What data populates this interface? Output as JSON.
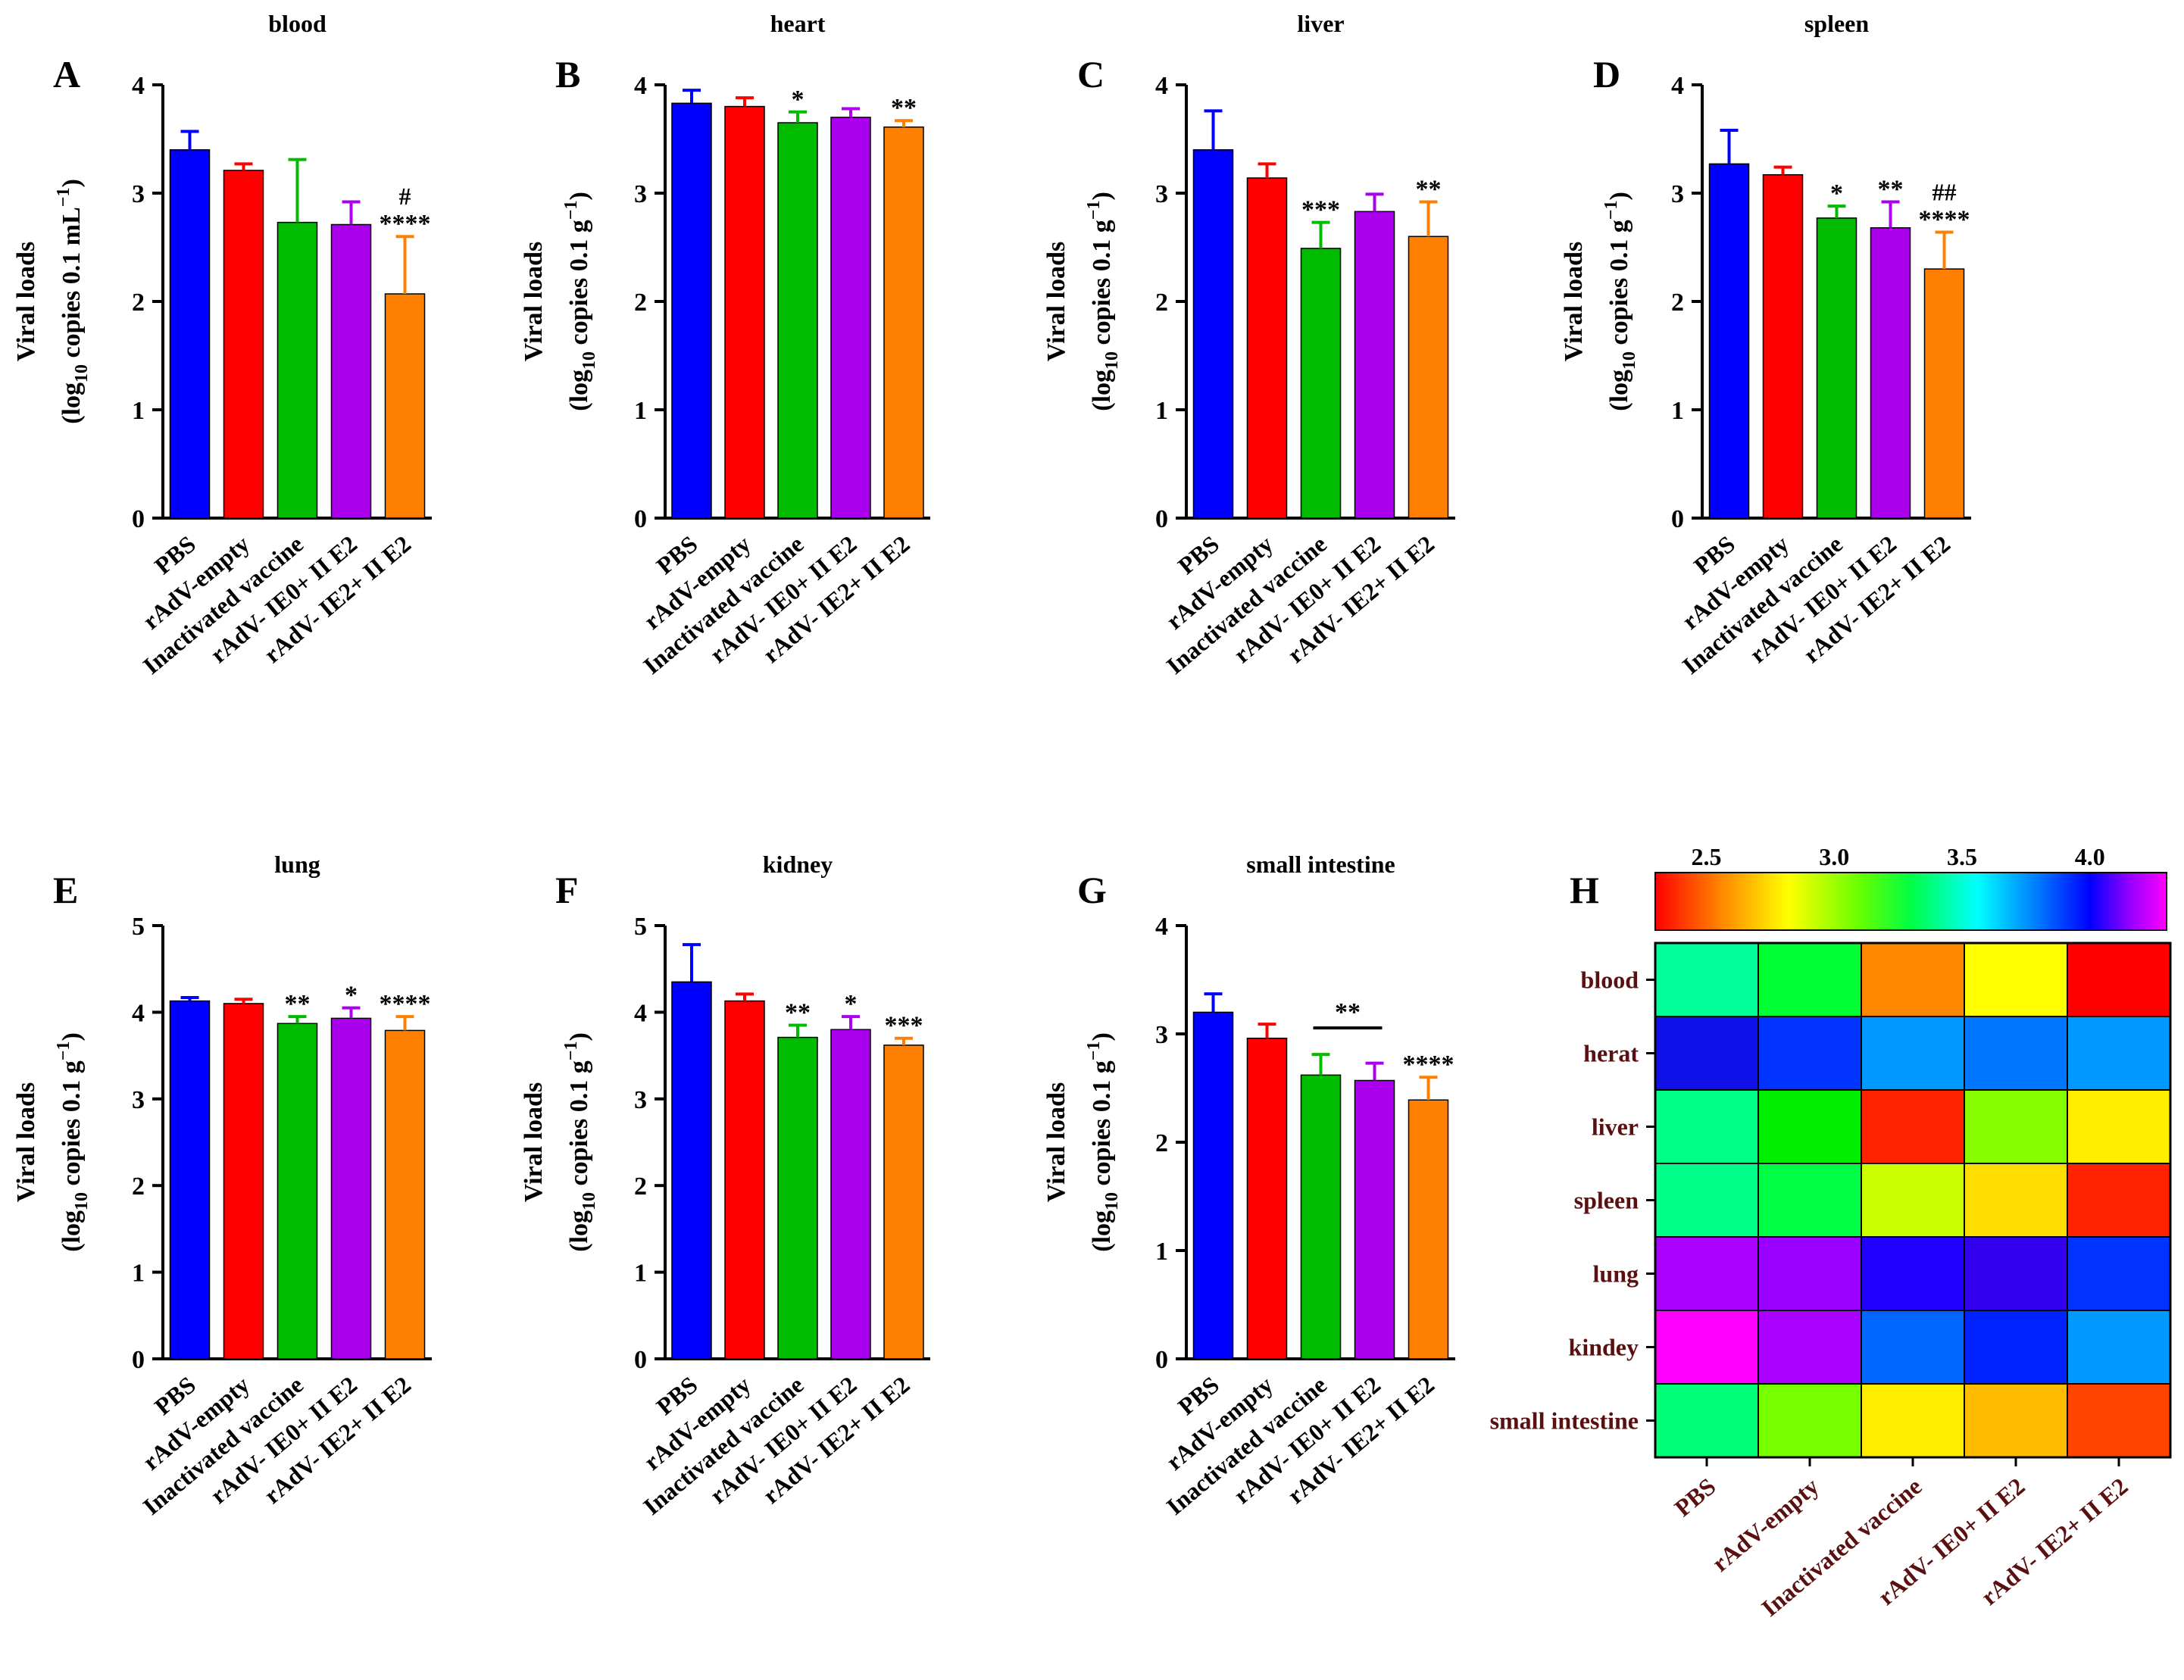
{
  "figure": {
    "groups": [
      "PBS",
      "rAdV-empty",
      "Inactivated vaccine",
      "rAdV- IE0+ II E2",
      "rAdV- IE2+ II E2"
    ],
    "bar_colors": [
      "#0000ff",
      "#ff0000",
      "#00bb00",
      "#aa00ee",
      "#ff8000"
    ],
    "y_label_line1": "Viral loads"
  },
  "chart_data": [
    {
      "panel": "A",
      "type": "bar",
      "title": "blood",
      "ylabel": "(log10 copies 0.1 mL−1)",
      "ylabel_parts": {
        "pre": "(log",
        "sub": "10",
        "mid": " copies 0.1 mL",
        "sup": "−1",
        "post": ")"
      },
      "ylim": [
        0,
        4
      ],
      "yticks": [
        "0",
        "1",
        "2",
        "3",
        "4"
      ],
      "categories": [
        "PBS",
        "rAdV-empty",
        "Inactivated vaccine",
        "rAdV- IE0+ II E2",
        "rAdV- IE2+ II E2"
      ],
      "values": [
        3.4,
        3.21,
        2.73,
        2.71,
        2.07
      ],
      "errors": [
        0.17,
        0.06,
        0.58,
        0.21,
        0.53
      ],
      "annotations": [
        "",
        "",
        "",
        "",
        "****"
      ],
      "annotations2": [
        "",
        "",
        "",
        "",
        "#"
      ]
    },
    {
      "panel": "B",
      "type": "bar",
      "title": "heart",
      "ylabel": "(log10 copies 0.1 g−1)",
      "ylabel_parts": {
        "pre": "(log",
        "sub": "10",
        "mid": " copies 0.1 g",
        "sup": "−1",
        "post": ")"
      },
      "ylim": [
        0,
        4
      ],
      "yticks": [
        "0",
        "1",
        "2",
        "3",
        "4"
      ],
      "categories": [
        "PBS",
        "rAdV-empty",
        "Inactivated vaccine",
        "rAdV- IE0+ II E2",
        "rAdV- IE2+ II E2"
      ],
      "values": [
        3.83,
        3.8,
        3.65,
        3.7,
        3.61
      ],
      "errors": [
        0.12,
        0.08,
        0.1,
        0.08,
        0.06
      ],
      "annotations": [
        "",
        "",
        "*",
        "",
        "**"
      ],
      "annotations2": [
        "",
        "",
        "",
        "",
        ""
      ]
    },
    {
      "panel": "C",
      "type": "bar",
      "title": "liver",
      "ylabel": "(log10 copies 0.1 g−1)",
      "ylabel_parts": {
        "pre": "(log",
        "sub": "10",
        "mid": " copies 0.1 g",
        "sup": "−1",
        "post": ")"
      },
      "ylim": [
        0,
        4
      ],
      "yticks": [
        "0",
        "1",
        "2",
        "3",
        "4"
      ],
      "categories": [
        "PBS",
        "rAdV-empty",
        "Inactivated vaccine",
        "rAdV- IE0+ II E2",
        "rAdV- IE2+ II E2"
      ],
      "values": [
        3.4,
        3.14,
        2.49,
        2.83,
        2.6
      ],
      "errors": [
        0.36,
        0.13,
        0.24,
        0.16,
        0.32
      ],
      "annotations": [
        "",
        "",
        "***",
        "",
        "**"
      ],
      "annotations2": [
        "",
        "",
        "",
        "",
        ""
      ]
    },
    {
      "panel": "D",
      "type": "bar",
      "title": "spleen",
      "ylabel": "(log10 copies 0.1 g−1)",
      "ylabel_parts": {
        "pre": "(log",
        "sub": "10",
        "mid": " copies 0.1 g",
        "sup": "−1",
        "post": ")"
      },
      "ylim": [
        0,
        4
      ],
      "yticks": [
        "0",
        "1",
        "2",
        "3",
        "4"
      ],
      "categories": [
        "PBS",
        "rAdV-empty",
        "Inactivated vaccine",
        "rAdV- IE0+ II E2",
        "rAdV- IE2+ II E2"
      ],
      "values": [
        3.27,
        3.17,
        2.77,
        2.68,
        2.3
      ],
      "errors": [
        0.31,
        0.07,
        0.11,
        0.24,
        0.34
      ],
      "annotations": [
        "",
        "",
        "*",
        "**",
        "****"
      ],
      "annotations2": [
        "",
        "",
        "",
        "",
        "##"
      ]
    },
    {
      "panel": "E",
      "type": "bar",
      "title": "lung",
      "ylabel": "(log10 copies 0.1 g−1)",
      "ylabel_parts": {
        "pre": "(log",
        "sub": "10",
        "mid": " copies 0.1 g",
        "sup": "−1",
        "post": ")"
      },
      "ylim": [
        0,
        5
      ],
      "yticks": [
        "0",
        "1",
        "2",
        "3",
        "4",
        "5"
      ],
      "categories": [
        "PBS",
        "rAdV-empty",
        "Inactivated vaccine",
        "rAdV- IE0+ II E2",
        "rAdV- IE2+ II E2"
      ],
      "values": [
        4.13,
        4.1,
        3.87,
        3.93,
        3.79
      ],
      "errors": [
        0.04,
        0.05,
        0.08,
        0.12,
        0.16
      ],
      "annotations": [
        "",
        "",
        "**",
        "*",
        "****"
      ],
      "annotations2": [
        "",
        "",
        "",
        "",
        ""
      ]
    },
    {
      "panel": "F",
      "type": "bar",
      "title": "kidney",
      "ylabel": "(log10 copies 0.1 g−1)",
      "ylabel_parts": {
        "pre": "(log",
        "sub": "10",
        "mid": " copies 0.1 g",
        "sup": "−1",
        "post": ")"
      },
      "ylim": [
        0,
        5
      ],
      "yticks": [
        "0",
        "1",
        "2",
        "3",
        "4",
        "5"
      ],
      "categories": [
        "PBS",
        "rAdV-empty",
        "Inactivated vaccine",
        "rAdV- IE0+ II E2",
        "rAdV- IE2+ II E2"
      ],
      "values": [
        4.35,
        4.13,
        3.71,
        3.8,
        3.62
      ],
      "errors": [
        0.43,
        0.08,
        0.14,
        0.15,
        0.08
      ],
      "annotations": [
        "",
        "",
        "**",
        "*",
        "***"
      ],
      "annotations2": [
        "",
        "",
        "",
        "",
        ""
      ]
    },
    {
      "panel": "G",
      "type": "bar",
      "title": "small intestine",
      "ylabel": "(log10 copies 0.1 g−1)",
      "ylabel_parts": {
        "pre": "(log",
        "sub": "10",
        "mid": " copies 0.1 g",
        "sup": "−1",
        "post": ")"
      },
      "ylim": [
        0,
        4
      ],
      "yticks": [
        "0",
        "1",
        "2",
        "3",
        "4"
      ],
      "categories": [
        "PBS",
        "rAdV-empty",
        "Inactivated vaccine",
        "rAdV- IE0+ II E2",
        "rAdV- IE2+ II E2"
      ],
      "values": [
        3.2,
        2.96,
        2.62,
        2.57,
        2.39
      ],
      "errors": [
        0.17,
        0.13,
        0.19,
        0.16,
        0.21
      ],
      "annotations": [
        "",
        "",
        "",
        "",
        "****"
      ],
      "annotations2": [
        "",
        "",
        "",
        "",
        ""
      ],
      "bracket": {
        "from": 2,
        "to": 3,
        "label": "**"
      }
    },
    {
      "panel": "H",
      "type": "heatmap",
      "rows": [
        "blood",
        "herat",
        "liver",
        "spleen",
        "lung",
        "kindey",
        "small intestine"
      ],
      "columns": [
        "PBS",
        "rAdV-empty",
        "Inactivated vaccine",
        "rAdV- IE0+ II E2",
        "rAdV- IE2+ II E2"
      ],
      "values": [
        [
          3.4,
          3.21,
          2.73,
          2.71,
          2.07
        ],
        [
          3.83,
          3.8,
          3.65,
          3.7,
          3.61
        ],
        [
          3.4,
          3.14,
          2.49,
          2.83,
          2.6
        ],
        [
          3.27,
          3.17,
          2.77,
          2.68,
          2.3
        ],
        [
          4.13,
          4.1,
          3.87,
          3.93,
          3.79
        ],
        [
          4.35,
          4.13,
          3.71,
          3.8,
          3.62
        ],
        [
          3.2,
          2.96,
          2.62,
          2.57,
          2.39
        ]
      ],
      "colorbar_range": [
        2.3,
        4.3
      ],
      "colorbar_ticks": [
        "2.5",
        "3.0",
        "3.5",
        "4.0"
      ],
      "cell_colors": [
        [
          "#00ff99",
          "#00ff33",
          "#ff8800",
          "#ffff00",
          "#ff0000"
        ],
        [
          "#1010e8",
          "#0033ff",
          "#0099ff",
          "#0077ff",
          "#0099ff"
        ],
        [
          "#00ff88",
          "#00ee00",
          "#ff2200",
          "#88ff00",
          "#ffee00"
        ],
        [
          "#00ff88",
          "#00ff44",
          "#ccff00",
          "#ffdd00",
          "#ff2200"
        ],
        [
          "#aa00ff",
          "#9900ff",
          "#2200ff",
          "#3300ee",
          "#0033ff"
        ],
        [
          "#ff00ff",
          "#aa00ff",
          "#0066ff",
          "#0022ff",
          "#0099ff"
        ],
        [
          "#00ff77",
          "#77ff00",
          "#ffee00",
          "#ffbb00",
          "#ff4400"
        ]
      ],
      "label_color": "#5a1010"
    }
  ]
}
